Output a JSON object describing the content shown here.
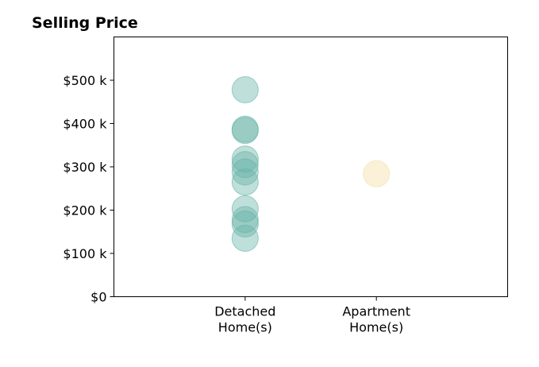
{
  "chart_data": {
    "type": "scatter",
    "title": "Selling Price",
    "xlabel": "",
    "ylabel": "",
    "categories": [
      [
        "Detached",
        "Home(s)"
      ],
      [
        "Apartment",
        "Home(s)"
      ]
    ],
    "ylim": [
      0,
      600000
    ],
    "yticks": [
      {
        "value": 0,
        "label": "$0"
      },
      {
        "value": 100000,
        "label": "$100 k"
      },
      {
        "value": 200000,
        "label": "$200 k"
      },
      {
        "value": 300000,
        "label": "$300 k"
      },
      {
        "value": 400000,
        "label": "$400 k"
      },
      {
        "value": 500000,
        "label": "$500 k"
      }
    ],
    "grid": false,
    "series": [
      {
        "category_index": 0,
        "color": "#66b2a6",
        "values": [
          478000,
          387000,
          384000,
          318000,
          305000,
          288000,
          265000,
          203000,
          178000,
          168000,
          135000
        ]
      },
      {
        "category_index": 1,
        "color": "#f3dea2",
        "values": [
          284000
        ]
      }
    ]
  }
}
